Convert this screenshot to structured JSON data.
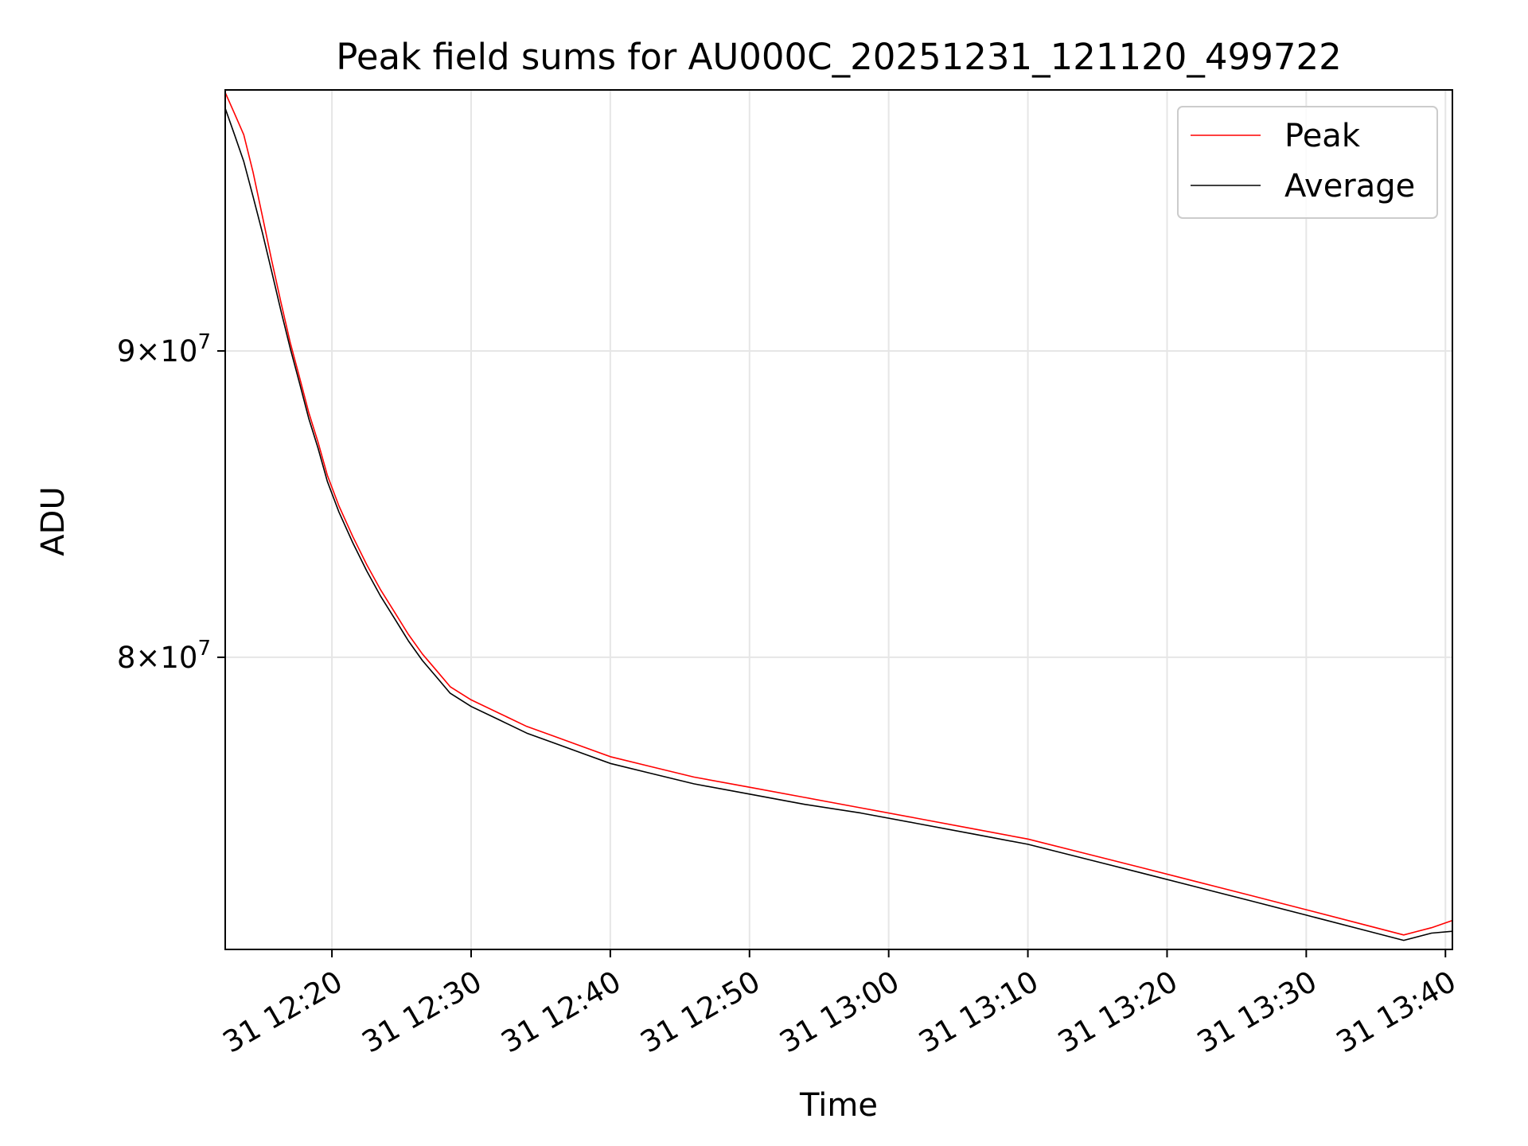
{
  "chart_data": {
    "type": "line",
    "title": "Peak field sums for AU000C_20251231_121120_499722",
    "xlabel": "Time",
    "ylabel": "ADU",
    "yscale": "log",
    "grid": true,
    "legend_position": "upper right",
    "x_ticks": [
      "31 12:20",
      "31 12:30",
      "31 12:40",
      "31 12:50",
      "31 13:00",
      "31 13:10",
      "31 13:20",
      "31 13:30",
      "31 13:40"
    ],
    "y_ticks": [
      {
        "value": 90000000,
        "mantissa": "9",
        "exponent": "7"
      },
      {
        "value": 80000000,
        "mantissa": "8",
        "exponent": "7"
      }
    ],
    "xlim": [
      "2025-12-31 12:12:20",
      "2025-12-31 13:40:30"
    ],
    "ylim": [
      71500000,
      99500000
    ],
    "series": [
      {
        "name": "Peak",
        "color": "#ff0000",
        "x": [
          "2025-12-31 12:12:20",
          "2025-12-31 12:13:00",
          "2025-12-31 12:13:40",
          "2025-12-31 12:14:20",
          "2025-12-31 12:15:00",
          "2025-12-31 12:15:40",
          "2025-12-31 12:16:20",
          "2025-12-31 12:17:00",
          "2025-12-31 12:17:40",
          "2025-12-31 12:18:20",
          "2025-12-31 12:19:00",
          "2025-12-31 12:19:40",
          "2025-12-31 12:20:30",
          "2025-12-31 12:21:30",
          "2025-12-31 12:22:30",
          "2025-12-31 12:23:30",
          "2025-12-31 12:24:30",
          "2025-12-31 12:25:30",
          "2025-12-31 12:26:30",
          "2025-12-31 12:27:30",
          "2025-12-31 12:28:30",
          "2025-12-31 12:30:00",
          "2025-12-31 12:32:00",
          "2025-12-31 12:34:00",
          "2025-12-31 12:36:00",
          "2025-12-31 12:38:00",
          "2025-12-31 12:40:00",
          "2025-12-31 12:43:00",
          "2025-12-31 12:46:00",
          "2025-12-31 12:50:00",
          "2025-12-31 12:54:00",
          "2025-12-31 12:58:00",
          "2025-12-31 13:02:00",
          "2025-12-31 13:06:00",
          "2025-12-31 13:10:00",
          "2025-12-31 13:14:00",
          "2025-12-31 13:18:00",
          "2025-12-31 13:22:00",
          "2025-12-31 13:26:00",
          "2025-12-31 13:30:00",
          "2025-12-31 13:34:00",
          "2025-12-31 13:37:00",
          "2025-12-31 13:39:00",
          "2025-12-31 13:40:30"
        ],
        "values": [
          99400000,
          98600000,
          97800000,
          96400000,
          94800000,
          93200000,
          91700000,
          90300000,
          89100000,
          87900000,
          86900000,
          85800000,
          84800000,
          83800000,
          82900000,
          82100000,
          81400000,
          80700000,
          80100000,
          79600000,
          79100000,
          78700000,
          78300000,
          77900000,
          77600000,
          77300000,
          77000000,
          76700000,
          76400000,
          76100000,
          75800000,
          75500000,
          75200000,
          74900000,
          74600000,
          74200000,
          73800000,
          73400000,
          73000000,
          72600000,
          72200000,
          71900000,
          72100000,
          72300000
        ]
      },
      {
        "name": "Average",
        "color": "#000000",
        "x": [
          "2025-12-31 12:12:20",
          "2025-12-31 12:13:00",
          "2025-12-31 12:13:40",
          "2025-12-31 12:14:20",
          "2025-12-31 12:15:00",
          "2025-12-31 12:15:40",
          "2025-12-31 12:16:20",
          "2025-12-31 12:17:00",
          "2025-12-31 12:17:40",
          "2025-12-31 12:18:20",
          "2025-12-31 12:19:00",
          "2025-12-31 12:19:40",
          "2025-12-31 12:20:30",
          "2025-12-31 12:21:30",
          "2025-12-31 12:22:30",
          "2025-12-31 12:23:30",
          "2025-12-31 12:24:30",
          "2025-12-31 12:25:30",
          "2025-12-31 12:26:30",
          "2025-12-31 12:27:30",
          "2025-12-31 12:28:30",
          "2025-12-31 12:30:00",
          "2025-12-31 12:32:00",
          "2025-12-31 12:34:00",
          "2025-12-31 12:36:00",
          "2025-12-31 12:38:00",
          "2025-12-31 12:40:00",
          "2025-12-31 12:43:00",
          "2025-12-31 12:46:00",
          "2025-12-31 12:50:00",
          "2025-12-31 12:54:00",
          "2025-12-31 12:58:00",
          "2025-12-31 13:02:00",
          "2025-12-31 13:06:00",
          "2025-12-31 13:10:00",
          "2025-12-31 13:14:00",
          "2025-12-31 13:18:00",
          "2025-12-31 13:22:00",
          "2025-12-31 13:26:00",
          "2025-12-31 13:30:00",
          "2025-12-31 13:34:00",
          "2025-12-31 13:37:00",
          "2025-12-31 13:39:00",
          "2025-12-31 13:40:30"
        ],
        "values": [
          98800000,
          97800000,
          96800000,
          95500000,
          94200000,
          92800000,
          91400000,
          90100000,
          88900000,
          87700000,
          86700000,
          85600000,
          84600000,
          83600000,
          82700000,
          81900000,
          81200000,
          80500000,
          79900000,
          79400000,
          78900000,
          78500000,
          78100000,
          77700000,
          77400000,
          77100000,
          76800000,
          76500000,
          76200000,
          75900000,
          75600000,
          75350000,
          75050000,
          74750000,
          74450000,
          74050000,
          73650000,
          73250000,
          72850000,
          72450000,
          72050000,
          71750000,
          71950000,
          72000000
        ]
      }
    ]
  }
}
